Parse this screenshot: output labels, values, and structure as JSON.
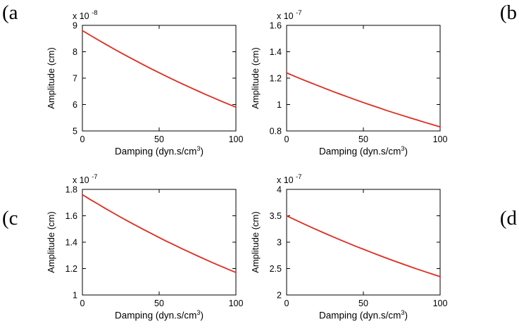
{
  "background": "#ffffff",
  "curve_color": "#e02b20",
  "axis_color": "#000000",
  "corner_labels": {
    "a": "(a",
    "b": "(b",
    "c": "(c",
    "d": "(d"
  },
  "axis_labels": {
    "y": "Amplitude (cm)",
    "x_prefix": "Damping (dyn.s/cm",
    "x_sup": "3",
    "x_suffix": ")"
  },
  "chart_data": [
    {
      "type": "line",
      "panel": "a",
      "xlabel": "Damping (dyn.s/cm^3)",
      "ylabel": "Amplitude (cm)",
      "exponent_base": "x 10",
      "exponent_power": "-8",
      "xlim": [
        0,
        100
      ],
      "ylim": [
        5,
        9
      ],
      "xticks": [
        0,
        50,
        100
      ],
      "xtick_labels": [
        "0",
        "50",
        "100"
      ],
      "yticks": [
        5,
        6,
        7,
        8,
        9
      ],
      "ytick_labels": [
        "5",
        "6",
        "7",
        "8",
        "9"
      ],
      "x": [
        0,
        5,
        10,
        15,
        20,
        25,
        30,
        35,
        40,
        45,
        50,
        55,
        60,
        65,
        70,
        75,
        80,
        85,
        90,
        95,
        100
      ],
      "y": [
        8.8,
        8.626,
        8.455,
        8.287,
        8.123,
        7.962,
        7.805,
        7.65,
        7.499,
        7.35,
        7.205,
        7.062,
        6.922,
        6.785,
        6.651,
        6.519,
        6.39,
        6.263,
        6.139,
        6.018,
        5.899
      ]
    },
    {
      "type": "line",
      "panel": "b",
      "xlabel": "Damping (dyn.s/cm^3)",
      "ylabel": "Amplitude (cm)",
      "exponent_base": "x 10",
      "exponent_power": "-7",
      "xlim": [
        0,
        100
      ],
      "ylim": [
        0.8,
        1.6
      ],
      "xticks": [
        0,
        50,
        100
      ],
      "xtick_labels": [
        "0",
        "50",
        "100"
      ],
      "yticks": [
        0.8,
        1.0,
        1.2,
        1.4,
        1.6
      ],
      "ytick_labels": [
        "0.8",
        "1",
        "1.2",
        "1.4",
        "1.6"
      ],
      "x": [
        0,
        5,
        10,
        15,
        20,
        25,
        30,
        35,
        40,
        45,
        50,
        55,
        60,
        65,
        70,
        75,
        80,
        85,
        90,
        95,
        100
      ],
      "y": [
        1.24,
        1.215,
        1.191,
        1.168,
        1.145,
        1.122,
        1.1,
        1.078,
        1.057,
        1.036,
        1.015,
        0.995,
        0.976,
        0.956,
        0.937,
        0.919,
        0.901,
        0.883,
        0.865,
        0.848,
        0.831
      ]
    },
    {
      "type": "line",
      "panel": "c",
      "xlabel": "Damping (dyn.s/cm^3)",
      "ylabel": "Amplitude (cm)",
      "exponent_base": "x 10",
      "exponent_power": "-7",
      "xlim": [
        0,
        100
      ],
      "ylim": [
        1.0,
        1.8
      ],
      "xticks": [
        0,
        50,
        100
      ],
      "xtick_labels": [
        "0",
        "50",
        "100"
      ],
      "yticks": [
        1.0,
        1.2,
        1.4,
        1.6,
        1.8
      ],
      "ytick_labels": [
        "1",
        "1.2",
        "1.4",
        "1.6",
        "1.8"
      ],
      "x": [
        0,
        5,
        10,
        15,
        20,
        25,
        30,
        35,
        40,
        45,
        50,
        55,
        60,
        65,
        70,
        75,
        80,
        85,
        90,
        95,
        100
      ],
      "y": [
        1.76,
        1.724,
        1.69,
        1.655,
        1.622,
        1.589,
        1.557,
        1.526,
        1.495,
        1.465,
        1.435,
        1.406,
        1.378,
        1.35,
        1.323,
        1.296,
        1.27,
        1.244,
        1.219,
        1.194,
        1.17
      ]
    },
    {
      "type": "line",
      "panel": "d",
      "xlabel": "Damping (dyn.s/cm^3)",
      "ylabel": "Amplitude (cm)",
      "exponent_base": "x 10",
      "exponent_power": "-7",
      "xlim": [
        0,
        100
      ],
      "ylim": [
        2,
        4
      ],
      "xticks": [
        0,
        50,
        100
      ],
      "xtick_labels": [
        "0",
        "50",
        "100"
      ],
      "yticks": [
        2,
        2.5,
        3,
        3.5,
        4
      ],
      "ytick_labels": [
        "2",
        "2.5",
        "3",
        "3.5",
        "4"
      ],
      "x": [
        0,
        5,
        10,
        15,
        20,
        25,
        30,
        35,
        40,
        45,
        50,
        55,
        60,
        65,
        70,
        75,
        80,
        85,
        90,
        95,
        100
      ],
      "y": [
        3.5,
        3.431,
        3.363,
        3.296,
        3.231,
        3.167,
        3.104,
        3.043,
        2.983,
        2.923,
        2.866,
        2.809,
        2.753,
        2.699,
        2.645,
        2.593,
        2.542,
        2.491,
        2.442,
        2.394,
        2.346
      ]
    }
  ]
}
